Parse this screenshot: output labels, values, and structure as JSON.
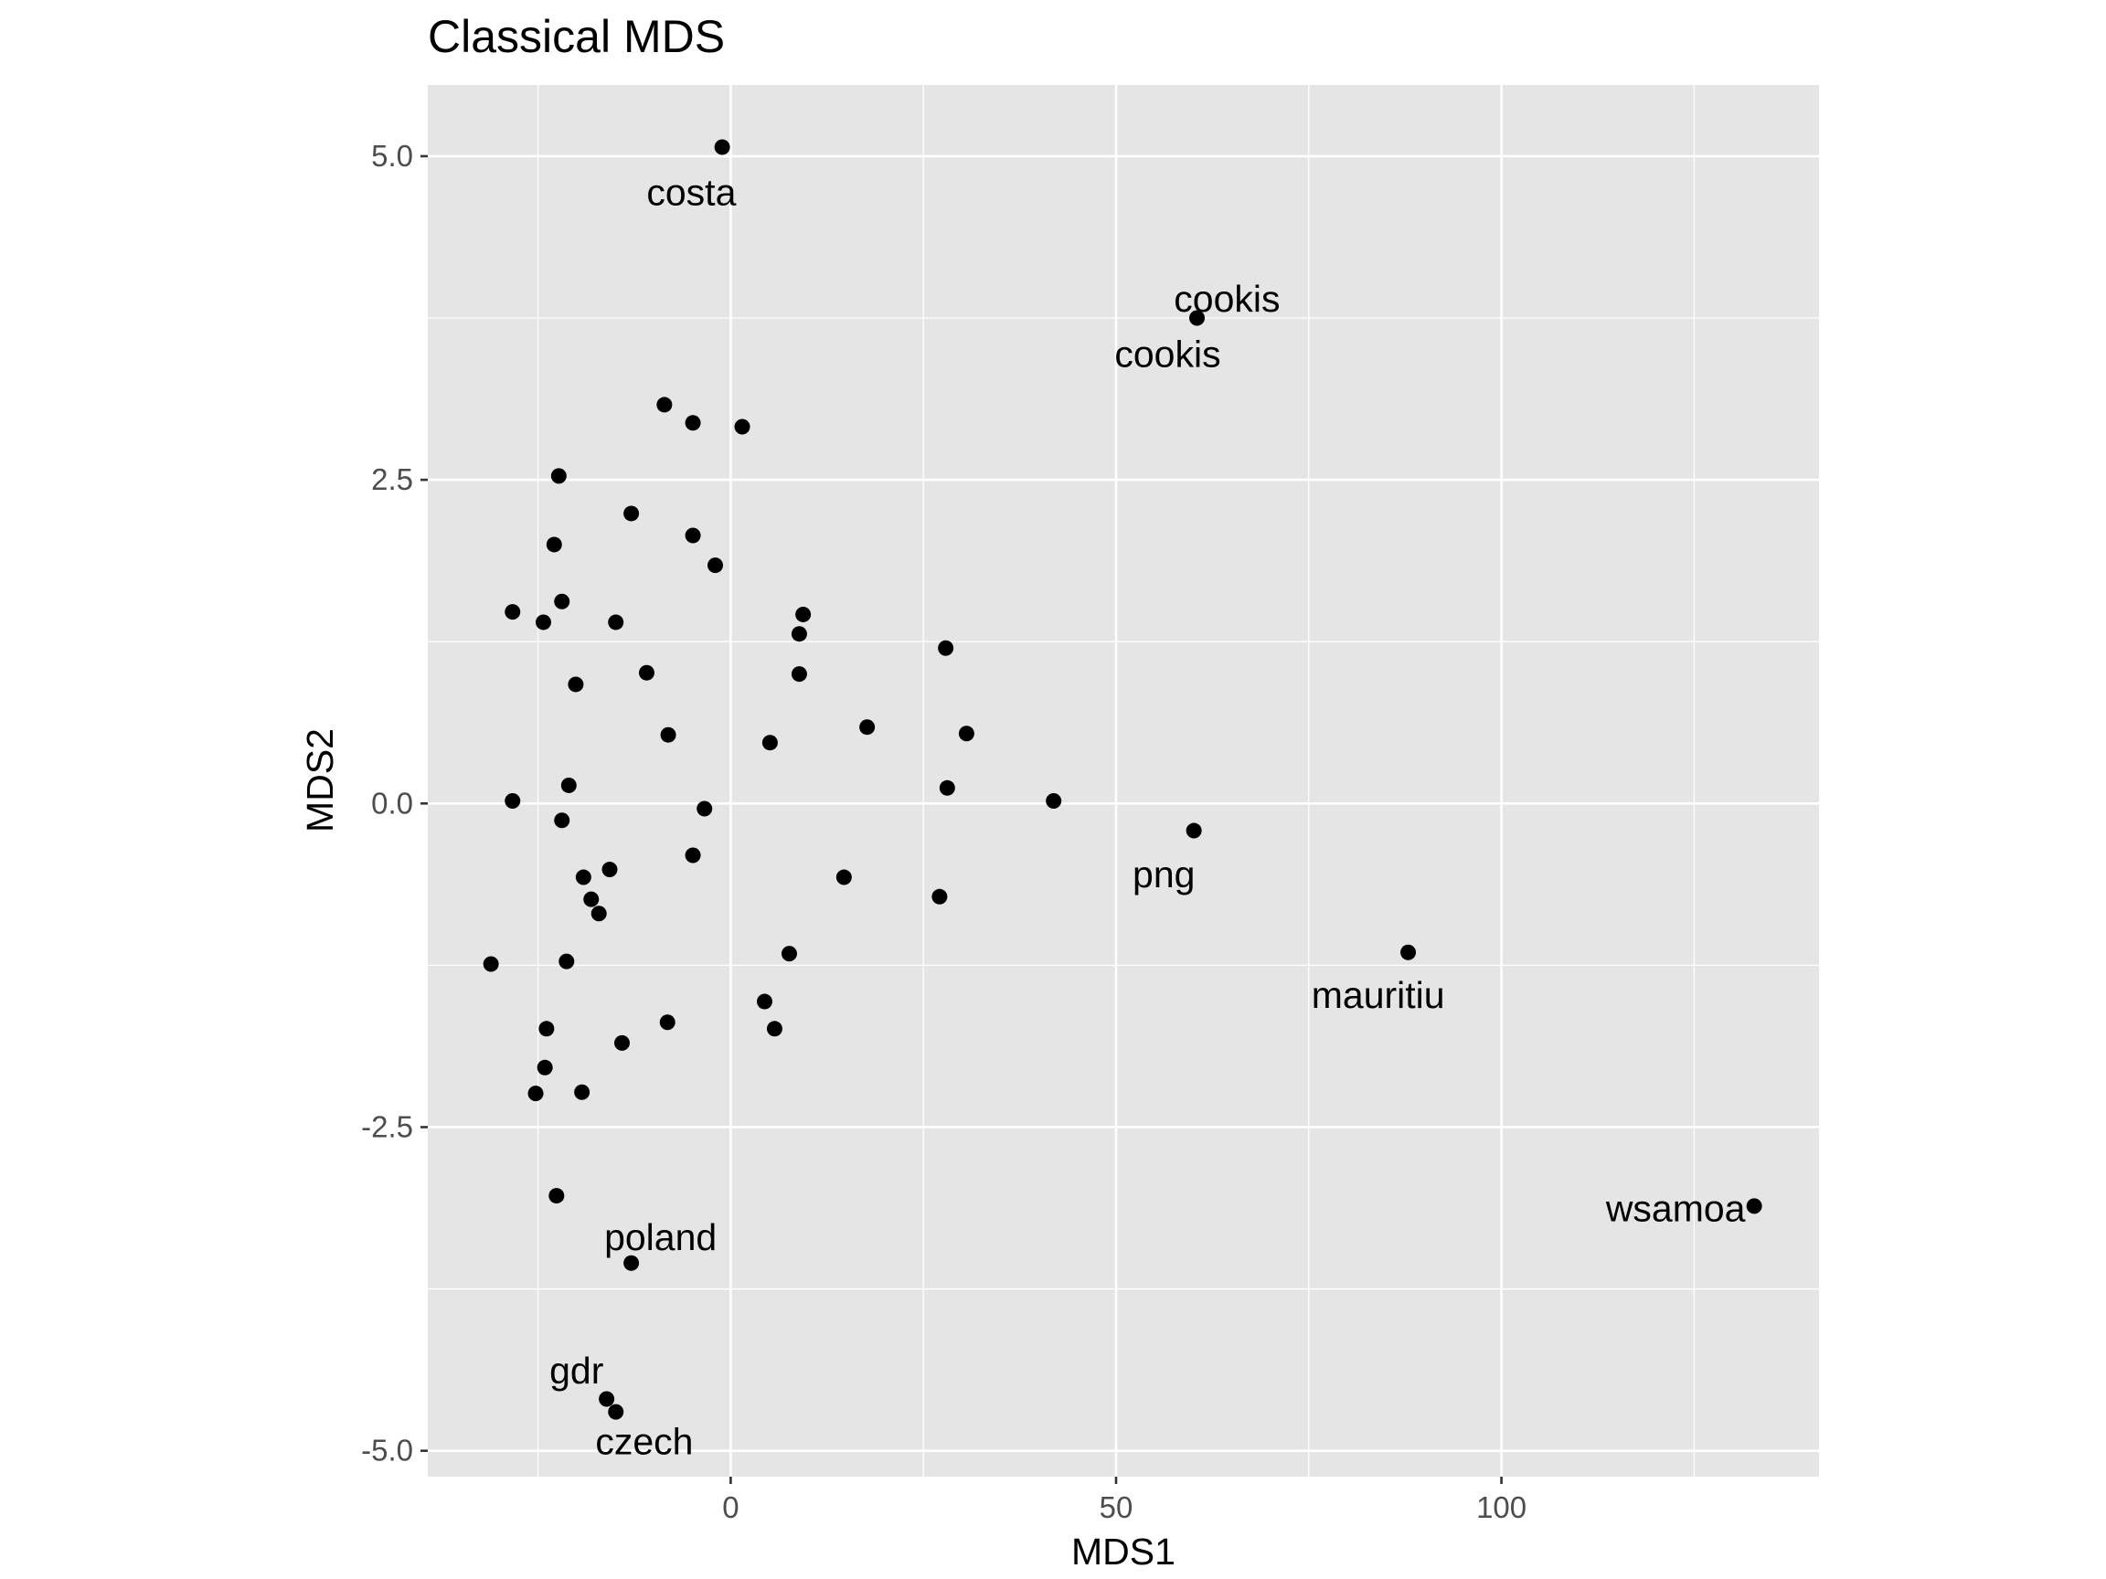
{
  "chart_data": {
    "type": "scatter",
    "title": "Classical MDS",
    "xlabel": "MDS1",
    "ylabel": "MDS2",
    "xlim": [
      -39.3,
      141.2
    ],
    "ylim": [
      -5.2,
      5.55
    ],
    "x_ticks": [
      0,
      50,
      100
    ],
    "x_tick_labels": [
      "0",
      "50",
      "100"
    ],
    "y_ticks": [
      -5,
      -2.5,
      0,
      2.5,
      5
    ],
    "y_tick_labels": [
      "-5.0",
      "-2.5",
      "0.0",
      "2.5",
      "5.0"
    ],
    "grid": true,
    "background": "#e5e5e5",
    "gridline_color": "#ffffff",
    "point_color": "#000000",
    "points": [
      {
        "x": -1.1,
        "y": 5.07
      },
      {
        "x": 60.5,
        "y": 3.75
      },
      {
        "x": -8.6,
        "y": 3.08
      },
      {
        "x": -4.9,
        "y": 2.94
      },
      {
        "x": 1.5,
        "y": 2.91
      },
      {
        "x": -22.3,
        "y": 2.53
      },
      {
        "x": -12.9,
        "y": 2.24
      },
      {
        "x": -4.9,
        "y": 2.07
      },
      {
        "x": -22.9,
        "y": 2.0
      },
      {
        "x": -2.0,
        "y": 1.84
      },
      {
        "x": -21.9,
        "y": 1.56
      },
      {
        "x": -28.3,
        "y": 1.48
      },
      {
        "x": -24.3,
        "y": 1.4
      },
      {
        "x": -14.9,
        "y": 1.4
      },
      {
        "x": 9.4,
        "y": 1.46
      },
      {
        "x": 8.9,
        "y": 1.31
      },
      {
        "x": 27.9,
        "y": 1.2
      },
      {
        "x": -10.9,
        "y": 1.01
      },
      {
        "x": 8.9,
        "y": 1.0
      },
      {
        "x": -20.1,
        "y": 0.92
      },
      {
        "x": 17.7,
        "y": 0.59
      },
      {
        "x": 30.6,
        "y": 0.54
      },
      {
        "x": -8.1,
        "y": 0.53
      },
      {
        "x": 5.1,
        "y": 0.47
      },
      {
        "x": -21.0,
        "y": 0.14
      },
      {
        "x": 28.1,
        "y": 0.12
      },
      {
        "x": 41.9,
        "y": 0.02
      },
      {
        "x": -28.3,
        "y": 0.02
      },
      {
        "x": -3.4,
        "y": -0.04
      },
      {
        "x": -21.9,
        "y": -0.13
      },
      {
        "x": 60.1,
        "y": -0.21
      },
      {
        "x": -4.9,
        "y": -0.4
      },
      {
        "x": -15.7,
        "y": -0.51
      },
      {
        "x": -19.1,
        "y": -0.57
      },
      {
        "x": 14.7,
        "y": -0.57
      },
      {
        "x": -18.1,
        "y": -0.74
      },
      {
        "x": 27.1,
        "y": -0.72
      },
      {
        "x": -17.1,
        "y": -0.85
      },
      {
        "x": 87.9,
        "y": -1.15
      },
      {
        "x": 7.6,
        "y": -1.16
      },
      {
        "x": -31.1,
        "y": -1.24
      },
      {
        "x": -21.3,
        "y": -1.22
      },
      {
        "x": 4.4,
        "y": -1.53
      },
      {
        "x": -8.2,
        "y": -1.69
      },
      {
        "x": -23.9,
        "y": -1.74
      },
      {
        "x": 5.7,
        "y": -1.74
      },
      {
        "x": -14.1,
        "y": -1.85
      },
      {
        "x": -24.1,
        "y": -2.04
      },
      {
        "x": -19.3,
        "y": -2.23
      },
      {
        "x": -25.3,
        "y": -2.24
      },
      {
        "x": 132.8,
        "y": -3.11
      },
      {
        "x": -22.6,
        "y": -3.03
      },
      {
        "x": -12.9,
        "y": -3.55
      },
      {
        "x": -16.1,
        "y": -4.6
      },
      {
        "x": -14.9,
        "y": -4.7
      }
    ],
    "annotations": [
      {
        "text": "costa",
        "x": -5.1,
        "y": 4.72
      },
      {
        "text": "cookis",
        "x": 64.4,
        "y": 3.9
      },
      {
        "text": "cookis",
        "x": 56.7,
        "y": 3.47
      },
      {
        "text": "png",
        "x": 56.2,
        "y": -0.55
      },
      {
        "text": "mauritiu",
        "x": 84.0,
        "y": -1.48
      },
      {
        "text": "wsamoa",
        "x": 122.6,
        "y": -3.13
      },
      {
        "text": "poland",
        "x": -9.1,
        "y": -3.35
      },
      {
        "text": "gdr",
        "x": -20.0,
        "y": -4.38
      },
      {
        "text": "czech",
        "x": -11.2,
        "y": -4.93
      }
    ]
  }
}
